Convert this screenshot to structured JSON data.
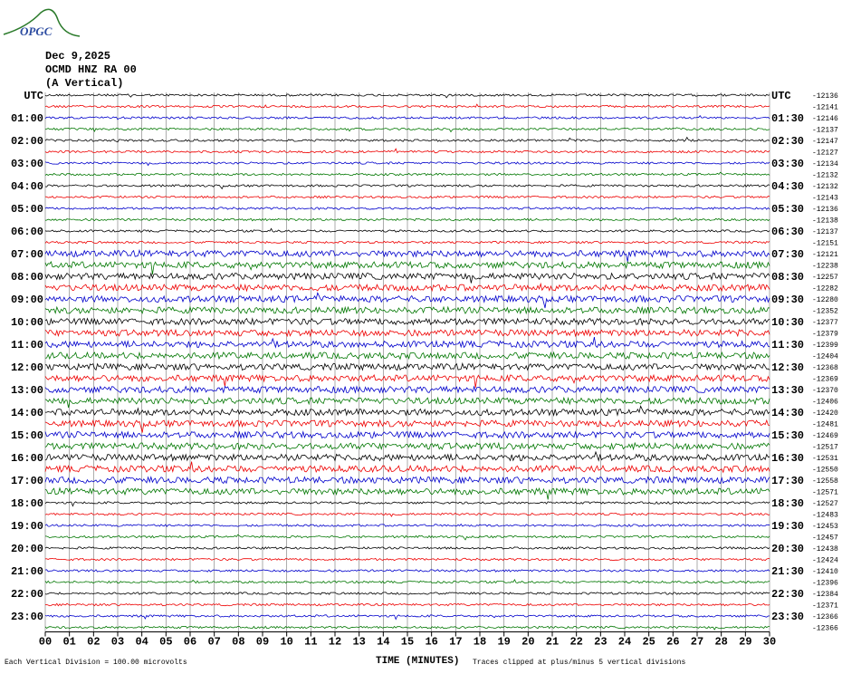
{
  "logo": "OPGC",
  "header": {
    "date": "Dec 9,2025",
    "station": "OCMD HNZ RA 00",
    "component": "(A Vertical)"
  },
  "left_labels": [
    "UTC",
    "01:00",
    "02:00",
    "03:00",
    "04:00",
    "05:00",
    "06:00",
    "07:00",
    "08:00",
    "09:00",
    "10:00",
    "11:00",
    "12:00",
    "13:00",
    "14:00",
    "15:00",
    "16:00",
    "17:00",
    "18:00",
    "19:00",
    "20:00",
    "21:00",
    "22:00",
    "23:00"
  ],
  "right_labels": [
    "UTC",
    "01:30",
    "02:30",
    "03:30",
    "04:30",
    "05:30",
    "06:30",
    "07:30",
    "08:30",
    "09:30",
    "10:30",
    "11:30",
    "12:30",
    "13:30",
    "14:30",
    "15:30",
    "16:30",
    "17:30",
    "18:30",
    "19:30",
    "20:30",
    "21:30",
    "22:30",
    "23:30"
  ],
  "trace_offsets": [
    "-12136",
    "-12141",
    "-12146",
    "-12137",
    "-12147",
    "-12127",
    "-12134",
    "-12132",
    "-12132",
    "-12143",
    "-12136",
    "-12138",
    "-12137",
    "-12151",
    "-12121",
    "-12238",
    "-12257",
    "-12282",
    "-12280",
    "-12352",
    "-12377",
    "-12379",
    "-12399",
    "-12404",
    "-12368",
    "-12369",
    "-12370",
    "-12406",
    "-12420",
    "-12481",
    "-12469",
    "-12517",
    "-12531",
    "-12550",
    "-12558",
    "-12571",
    "-12527",
    "-12483",
    "-12453",
    "-12457",
    "-12438",
    "-12424",
    "-12410",
    "-12396",
    "-12384",
    "-12371",
    "-12366",
    "-12366"
  ],
  "x_labels": [
    "00",
    "01",
    "02",
    "03",
    "04",
    "05",
    "06",
    "07",
    "08",
    "09",
    "10",
    "11",
    "12",
    "13",
    "14",
    "15",
    "16",
    "17",
    "18",
    "19",
    "20",
    "21",
    "22",
    "23",
    "24",
    "25",
    "26",
    "27",
    "28",
    "29",
    "30"
  ],
  "footer": {
    "scale": "Each Vertical Division =  100.00 microvolts",
    "axis_title": "TIME (MINUTES)",
    "clip": "Traces clipped at plus/minus 5 vertical divisions"
  }
}
